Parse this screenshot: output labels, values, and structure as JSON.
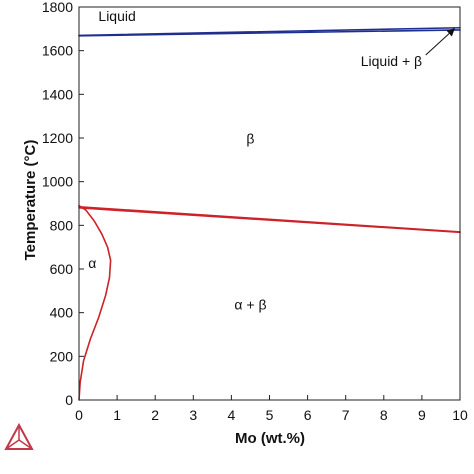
{
  "chart_data": {
    "type": "line",
    "title": "",
    "xlabel": "Mo (wt.%)",
    "ylabel": "Temperature (°C)",
    "xlim": [
      0,
      10
    ],
    "ylim": [
      0,
      1800
    ],
    "xticks": [
      0,
      1,
      2,
      3,
      4,
      5,
      6,
      7,
      8,
      9,
      10
    ],
    "yticks": [
      0,
      200,
      400,
      600,
      800,
      1000,
      1200,
      1400,
      1600,
      1800
    ],
    "grid": false,
    "legend": "none",
    "series": [
      {
        "color": "#1f2f8f",
        "x": [
          0,
          10
        ],
        "y": [
          1670,
          1705
        ]
      },
      {
        "color": "#1f2f8f",
        "x": [
          0,
          10
        ],
        "y": [
          1668,
          1695
        ]
      },
      {
        "color": "#cc2229",
        "x": [
          0,
          10
        ],
        "y": [
          885,
          770
        ]
      },
      {
        "color": "#cc2229",
        "x": [
          0,
          10
        ],
        "y": [
          880,
          768
        ]
      },
      {
        "color": "#cc2229",
        "x": [
          0,
          0.18,
          0.4,
          0.6,
          0.75,
          0.83,
          0.8,
          0.7,
          0.52,
          0.3,
          0.12,
          0.03,
          0
        ],
        "y": [
          890,
          870,
          820,
          760,
          700,
          640,
          560,
          480,
          380,
          280,
          180,
          80,
          0
        ]
      }
    ],
    "annotations": [
      {
        "text": "Liquid",
        "x": 1.0,
        "y": 1735
      },
      {
        "text": "Liquid + β",
        "x": 8.2,
        "y": 1530
      },
      {
        "text": "β",
        "x": 4.5,
        "y": 1175
      },
      {
        "text": "α",
        "x": 0.35,
        "y": 605
      },
      {
        "text": "α + β",
        "x": 4.5,
        "y": 415
      }
    ],
    "arrow": {
      "from": [
        9.1,
        1580
      ],
      "to": [
        9.85,
        1700
      ]
    }
  },
  "logo": {
    "icon": "thermo-calc-logo-icon",
    "color": "#c0394b"
  }
}
